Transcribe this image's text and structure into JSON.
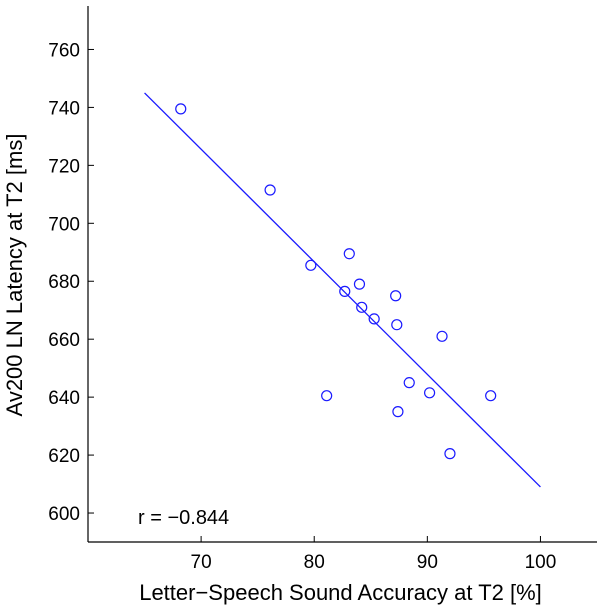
{
  "chart_data": {
    "type": "scatter",
    "title": "",
    "xlabel": "Letter−Speech Sound Accuracy at T2 [%]",
    "ylabel": "Av200 LN Latency at T2 [ms]",
    "xlim": [
      60,
      105
    ],
    "ylim": [
      590,
      775
    ],
    "xticks": [
      70,
      80,
      90,
      100
    ],
    "yticks": [
      600,
      620,
      640,
      660,
      680,
      700,
      720,
      740,
      760
    ],
    "grid": false,
    "legend": "none",
    "marker": "open-circle",
    "colors": {
      "points": "#1a1aff",
      "fit_line": "#1a1aff",
      "axes": "#000000"
    },
    "points": [
      {
        "x": 68.2,
        "y": 739.5
      },
      {
        "x": 76.1,
        "y": 711.5
      },
      {
        "x": 79.7,
        "y": 685.5
      },
      {
        "x": 81.1,
        "y": 640.5
      },
      {
        "x": 82.7,
        "y": 676.5
      },
      {
        "x": 83.1,
        "y": 689.5
      },
      {
        "x": 84.0,
        "y": 679.0
      },
      {
        "x": 84.2,
        "y": 671.0
      },
      {
        "x": 85.3,
        "y": 667.0
      },
      {
        "x": 87.2,
        "y": 675.0
      },
      {
        "x": 87.3,
        "y": 665.0
      },
      {
        "x": 87.4,
        "y": 635.0
      },
      {
        "x": 88.4,
        "y": 645.0
      },
      {
        "x": 90.2,
        "y": 641.5
      },
      {
        "x": 91.3,
        "y": 661.0
      },
      {
        "x": 92.0,
        "y": 620.5
      },
      {
        "x": 95.6,
        "y": 640.5
      }
    ],
    "fit_line": {
      "x": [
        65,
        100
      ],
      "y": [
        745,
        609
      ]
    },
    "annotation": "r = −0.844"
  }
}
